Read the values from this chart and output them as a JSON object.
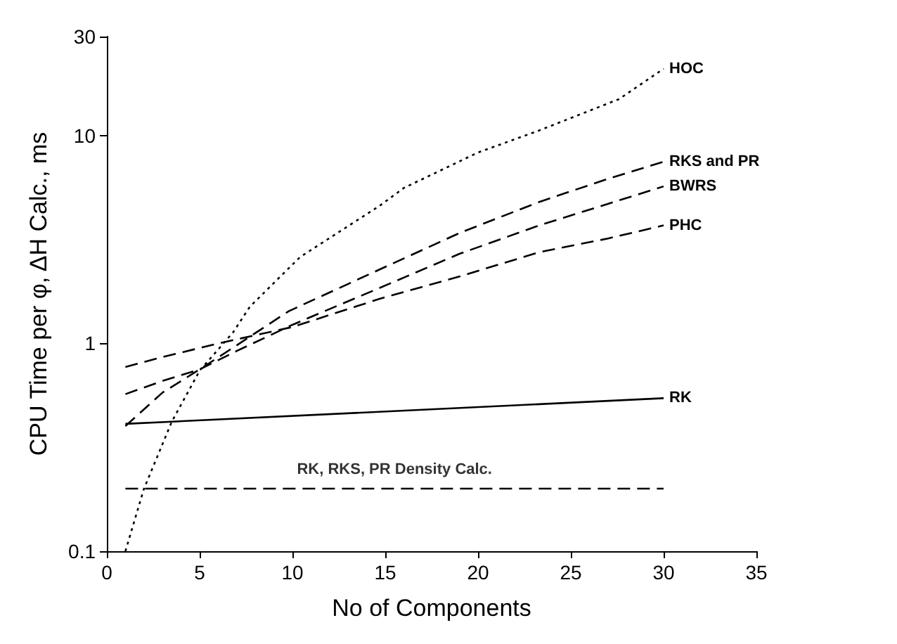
{
  "chart_data": {
    "type": "line",
    "xlabel": "No of Components",
    "ylabel": "CPU Time per φ, ΔH Calc., ms",
    "log": "y",
    "xlim": [
      0,
      35
    ],
    "xticks": [
      0,
      5,
      10,
      15,
      20,
      25,
      30,
      35
    ],
    "ylim": [
      0.1,
      30
    ],
    "yticks": [
      0.1,
      1,
      10,
      30
    ],
    "grid": false,
    "marker": "none",
    "series": [
      {
        "name": "HOC",
        "color": "#000000",
        "line_style": "dotted",
        "x": [
          1,
          2,
          3.5,
          5,
          6.8,
          7.7,
          10.4,
          14.7,
          16,
          20,
          23.3,
          27.6,
          30
        ],
        "values": [
          0.1,
          0.2,
          0.42,
          0.74,
          1.13,
          1.5,
          2.6,
          4.6,
          5.6,
          8.3,
          10.6,
          15,
          21
        ]
      },
      {
        "name": "RKS and PR",
        "color": "#000000",
        "line_style": "dashed",
        "x": [
          1,
          3,
          5,
          7,
          9.8,
          14.7,
          19,
          23.3,
          27,
          30
        ],
        "values": [
          0.4,
          0.58,
          0.75,
          0.98,
          1.43,
          2.27,
          3.4,
          4.8,
          6.2,
          7.5
        ]
      },
      {
        "name": "BWRS",
        "color": "#000000",
        "line_style": "dashed",
        "x": [
          1,
          3,
          5,
          7,
          10,
          14.7,
          19,
          23.3,
          27,
          30
        ],
        "values": [
          0.57,
          0.66,
          0.75,
          0.92,
          1.23,
          1.85,
          2.7,
          3.7,
          4.7,
          5.7
        ]
      },
      {
        "name": "PHC",
        "color": "#000000",
        "line_style": "dashed",
        "x": [
          1,
          3,
          6,
          10,
          14.7,
          19,
          23.3,
          27,
          30
        ],
        "values": [
          0.77,
          0.86,
          1.0,
          1.2,
          1.64,
          2.1,
          2.75,
          3.2,
          3.7
        ]
      },
      {
        "name": "RK",
        "color": "#000000",
        "line_style": "solid",
        "x": [
          1,
          30
        ],
        "values": [
          0.41,
          0.545
        ]
      },
      {
        "color": "#000000",
        "line_style": "dashed",
        "x": [
          1,
          30
        ],
        "values": [
          0.2,
          0.2
        ]
      }
    ],
    "annotations": [
      {
        "text": "RK, RKS, PR Density Calc.",
        "x": 15.5,
        "y": 0.2
      }
    ]
  }
}
